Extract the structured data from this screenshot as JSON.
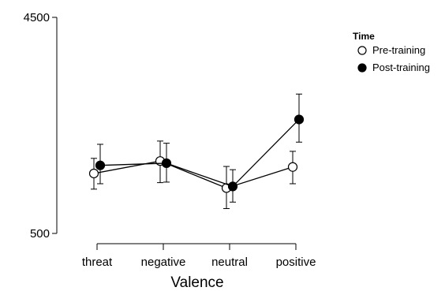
{
  "chart_data": {
    "type": "line",
    "title": "",
    "xlabel": "Valence",
    "ylabel": "",
    "categories": [
      "threat",
      "negative",
      "neutral",
      "positive"
    ],
    "ylim": [
      500,
      4500
    ],
    "yticks": [
      "500",
      "4500"
    ],
    "grid": false,
    "legend": {
      "title": "Time",
      "position": "top-right",
      "entries": [
        "Pre-training",
        "Post-training"
      ]
    },
    "series": [
      {
        "name": "Pre-training",
        "marker": "open-circle",
        "color": "#000000",
        "values": [
          1610,
          1840,
          1340,
          1730
        ],
        "error_low": [
          1320,
          1440,
          960,
          1420
        ],
        "error_high": [
          1890,
          2210,
          1740,
          2020
        ]
      },
      {
        "name": "Post-training",
        "marker": "filled-circle",
        "color": "#000000",
        "values": [
          1760,
          1800,
          1370,
          2610
        ],
        "error_low": [
          1420,
          1450,
          1080,
          2190
        ],
        "error_high": [
          2150,
          2170,
          1680,
          3080
        ]
      }
    ]
  }
}
